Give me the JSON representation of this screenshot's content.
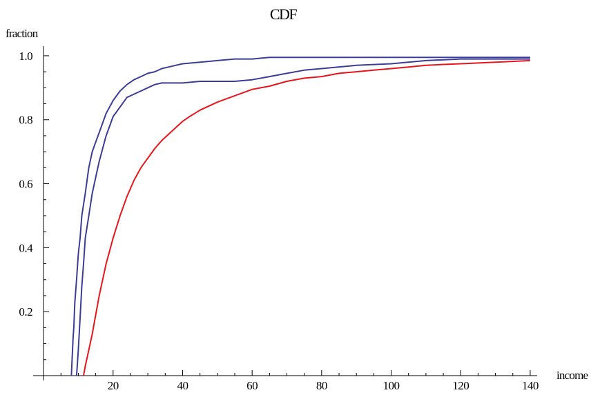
{
  "chart_data": {
    "type": "line",
    "title": "CDF",
    "xlabel": "income",
    "ylabel": "fraction",
    "xlim": [
      -3,
      142
    ],
    "ylim": [
      0,
      1.03
    ],
    "xticks": [
      20,
      40,
      60,
      80,
      100,
      120,
      140
    ],
    "xtick_labels": [
      "20",
      "40",
      "60",
      "80",
      "100",
      "120",
      "140"
    ],
    "yticks": [
      0.2,
      0.4,
      0.6,
      0.8,
      1.0
    ],
    "ytick_labels": [
      "0.2",
      "0.4",
      "0.6",
      "0.8",
      "1.0"
    ],
    "grid": false,
    "legend": "none",
    "series": [
      {
        "color": "#3b3b98",
        "x": [
          8,
          8.2,
          8.5,
          8.7,
          9,
          9.5,
          10,
          10.5,
          11,
          12,
          13,
          14,
          15,
          16,
          17,
          18,
          19,
          20,
          22,
          24,
          26,
          28,
          30,
          32,
          34,
          36,
          38,
          40,
          45,
          50,
          55,
          60,
          65,
          80,
          100,
          120,
          140
        ],
        "values": [
          0,
          0.05,
          0.12,
          0.15,
          0.23,
          0.3,
          0.38,
          0.43,
          0.5,
          0.57,
          0.65,
          0.7,
          0.73,
          0.76,
          0.79,
          0.82,
          0.84,
          0.86,
          0.89,
          0.91,
          0.925,
          0.935,
          0.945,
          0.95,
          0.96,
          0.965,
          0.97,
          0.975,
          0.98,
          0.985,
          0.99,
          0.99,
          0.995,
          0.995,
          0.995,
          0.995,
          0.995
        ]
      },
      {
        "color": "#3b3b98",
        "x": [
          9.5,
          10,
          10.5,
          11,
          11.5,
          12,
          13,
          14,
          15,
          16,
          17,
          18,
          19,
          20,
          22,
          24,
          26,
          28,
          30,
          32,
          34,
          40,
          45,
          50,
          55,
          60,
          65,
          70,
          75,
          80,
          90,
          100,
          110,
          120,
          140
        ],
        "values": [
          0,
          0.08,
          0.18,
          0.28,
          0.35,
          0.43,
          0.5,
          0.57,
          0.62,
          0.67,
          0.71,
          0.75,
          0.78,
          0.81,
          0.84,
          0.87,
          0.88,
          0.89,
          0.9,
          0.91,
          0.915,
          0.915,
          0.92,
          0.92,
          0.92,
          0.925,
          0.935,
          0.945,
          0.955,
          0.96,
          0.97,
          0.975,
          0.985,
          0.99,
          0.99
        ]
      },
      {
        "color": "#e8141a",
        "x": [
          11.5,
          12,
          13,
          14,
          15,
          16,
          17,
          18,
          19,
          20,
          22,
          24,
          26,
          28,
          30,
          32,
          34,
          36,
          38,
          40,
          42,
          45,
          50,
          55,
          60,
          65,
          70,
          75,
          80,
          85,
          90,
          95,
          100,
          105,
          110,
          115,
          120,
          130,
          140
        ],
        "values": [
          0,
          0.03,
          0.08,
          0.13,
          0.19,
          0.25,
          0.3,
          0.35,
          0.39,
          0.43,
          0.5,
          0.56,
          0.61,
          0.65,
          0.68,
          0.71,
          0.735,
          0.755,
          0.775,
          0.795,
          0.81,
          0.83,
          0.855,
          0.875,
          0.895,
          0.905,
          0.92,
          0.93,
          0.935,
          0.945,
          0.95,
          0.955,
          0.96,
          0.965,
          0.97,
          0.973,
          0.975,
          0.98,
          0.985
        ]
      }
    ]
  }
}
